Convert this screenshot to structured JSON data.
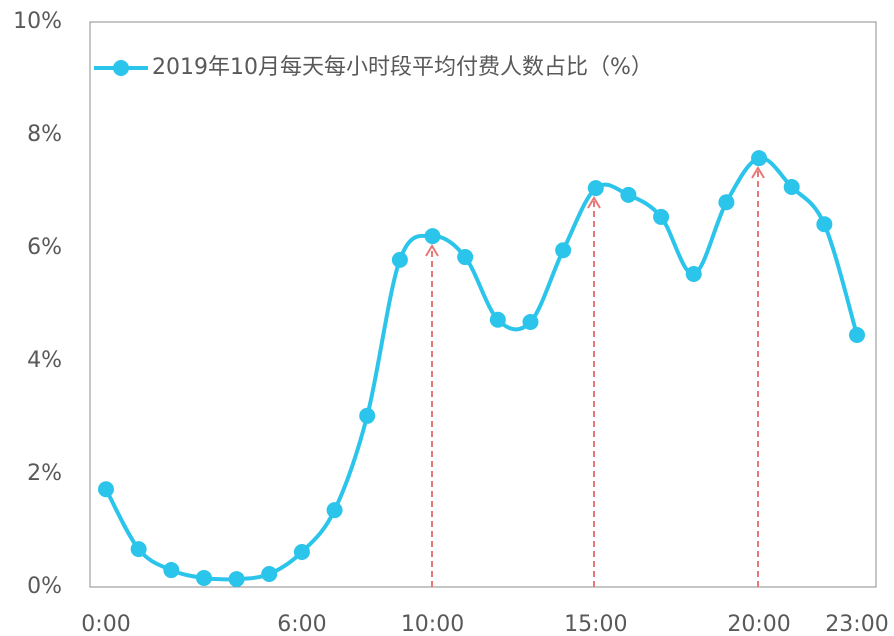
{
  "chart_data": {
    "type": "line",
    "categories": [
      "0:00",
      null,
      null,
      null,
      null,
      null,
      "6:00",
      null,
      null,
      null,
      "10:00",
      null,
      null,
      null,
      null,
      "15:00",
      null,
      null,
      null,
      null,
      "20:00",
      null,
      null,
      "23:00"
    ],
    "series": [
      {
        "name": "2019年10月每天每小时段平均付费人数占比（%）",
        "color": "#2bc4ea",
        "values": [
          1.73,
          0.67,
          0.3,
          0.16,
          0.14,
          0.23,
          0.62,
          1.36,
          3.03,
          5.79,
          6.21,
          5.84,
          4.73,
          4.69,
          5.96,
          7.06,
          6.94,
          6.55,
          5.54,
          6.81,
          7.59,
          7.08,
          6.42,
          4.46
        ]
      }
    ],
    "ylim": [
      0,
      10
    ],
    "yticks": [
      {
        "value": 0,
        "label": "0%"
      },
      {
        "value": 2,
        "label": "2%"
      },
      {
        "value": 4,
        "label": "4%"
      },
      {
        "value": 6,
        "label": "6%"
      },
      {
        "value": 8,
        "label": "8%"
      },
      {
        "value": 10,
        "label": "10%"
      }
    ],
    "legend": "top-left",
    "grid": false
  }
}
